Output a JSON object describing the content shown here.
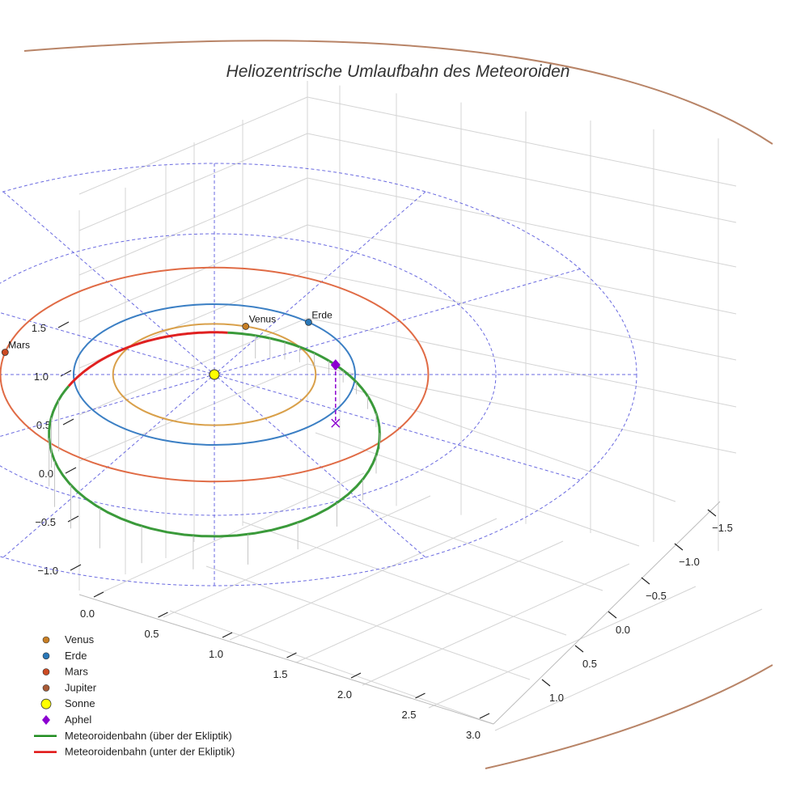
{
  "chart_data": {
    "type": "line",
    "projection": "3d",
    "title": "Heliozentrische Umlaufbahn des Meteoroiden",
    "axes": {
      "x": {
        "ticks": [
          0.0,
          0.5,
          1.0,
          1.5,
          2.0,
          2.5,
          3.0
        ],
        "tick_labels": [
          "0.0",
          "0.5",
          "1.0",
          "1.5",
          "2.0",
          "2.5",
          "3.0"
        ]
      },
      "y": {
        "ticks": [
          -1.5,
          -1.0,
          -0.5,
          0.0,
          0.5,
          1.0
        ],
        "tick_labels": [
          "−1.5",
          "−1.0",
          "−0.5",
          "0.0",
          "0.5",
          "1.0"
        ]
      },
      "z": {
        "ticks": [
          -1.0,
          -0.5,
          0.0,
          0.5,
          1.0,
          1.5
        ],
        "tick_labels": [
          "−1.0",
          "−0.5",
          "0.0",
          "0.5",
          "1.0",
          "1.5"
        ]
      },
      "grid": true,
      "reference_rings_au": [
        2.0,
        3.0
      ],
      "reference_spokes_deg": [
        0,
        30,
        60,
        90,
        120,
        150
      ]
    },
    "orbits": [
      {
        "name": "Venus",
        "radius_au": 0.72,
        "color": "#d9a04a",
        "show_label": true
      },
      {
        "name": "Erde",
        "radius_au": 1.0,
        "color": "#3b7fc4",
        "show_label": true
      },
      {
        "name": "Mars",
        "radius_au": 1.52,
        "color": "#e06b45",
        "show_label": true
      },
      {
        "name": "Jupiter",
        "radius_au": 5.2,
        "color": "#b88467",
        "show_label": false
      }
    ],
    "meteoroid_orbit": {
      "perihelion_au": 0.6,
      "aphelion_au": 2.3,
      "perihelion_angle_deg": 90,
      "above_ecliptic": {
        "label": "Meteoroidenbahn (über der Ekliptik)",
        "color": "#3a9a3a"
      },
      "below_ecliptic": {
        "label": "Meteoroidenbahn (unter der Ekliptik)",
        "color": "#e02020"
      }
    },
    "aphel_marker": {
      "label": "Aphel",
      "color": "#8b00d0"
    },
    "legend": {
      "position": "bottom-left",
      "entries": [
        {
          "label": "Venus",
          "kind": "dot",
          "color": "#c87f25"
        },
        {
          "label": "Erde",
          "kind": "dot",
          "color": "#2a78b8"
        },
        {
          "label": "Mars",
          "kind": "dot",
          "color": "#cc4a22"
        },
        {
          "label": "Jupiter",
          "kind": "dot",
          "color": "#a85a35"
        },
        {
          "label": "Sonne",
          "kind": "sun",
          "color": "#ffff00"
        },
        {
          "label": "Aphel",
          "kind": "diamond",
          "color": "#8b00d0"
        },
        {
          "label": "Meteoroidenbahn (über der Ekliptik)",
          "kind": "line",
          "color": "#1e8c1e"
        },
        {
          "label": "Meteoroidenbahn (unter der Ekliptik)",
          "kind": "line",
          "color": "#e01010"
        }
      ]
    }
  }
}
